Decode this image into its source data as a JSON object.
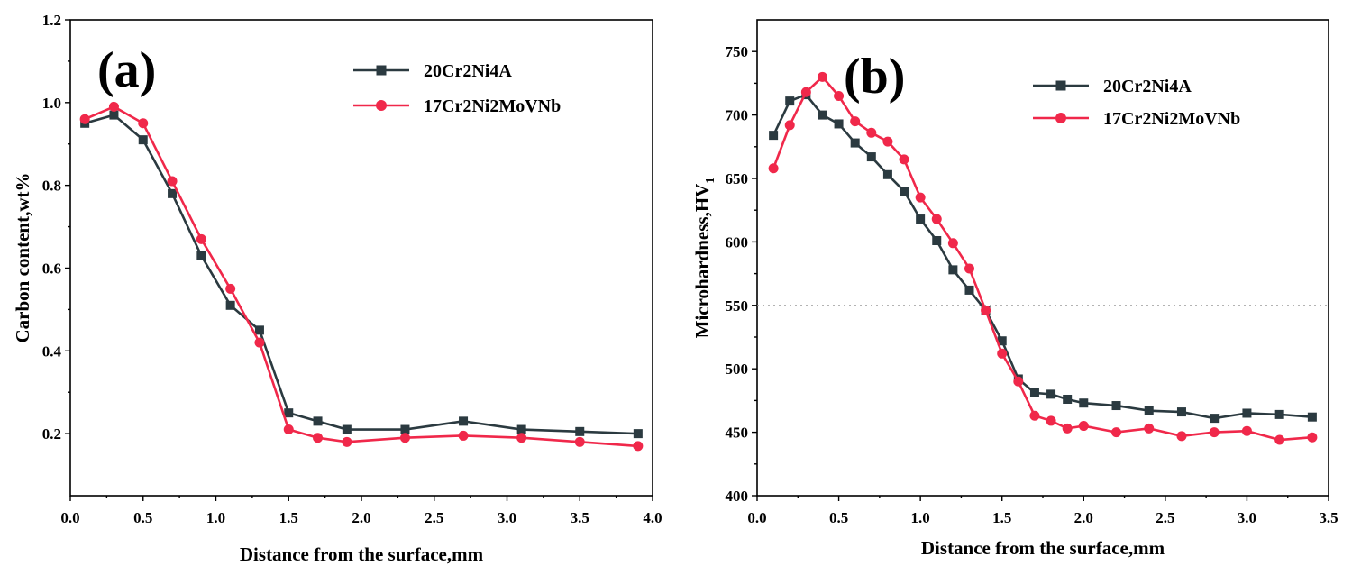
{
  "chart_data": [
    {
      "type": "line",
      "panel_label": "(a)",
      "title": "",
      "xlabel": "Distance from the surface,mm",
      "ylabel": "Carbon content,wt%",
      "xlim": [
        0,
        4.0
      ],
      "ylim": [
        0.05,
        1.2
      ],
      "xticks": [
        0.0,
        0.5,
        1.0,
        1.5,
        2.0,
        2.5,
        3.0,
        3.5,
        4.0
      ],
      "xtick_labels": [
        "0.0",
        "0.5",
        "1.0",
        "1.5",
        "2.0",
        "2.5",
        "3.0",
        "3.5",
        "4.0"
      ],
      "yticks": [
        0.2,
        0.4,
        0.6,
        0.8,
        1.0,
        1.2
      ],
      "ytick_labels": [
        "0.2",
        "0.4",
        "0.6",
        "0.8",
        "1.0",
        "1.2"
      ],
      "legend_position": "top-right",
      "series": [
        {
          "name": "20Cr2Ni4A",
          "color": "#2b3a40",
          "marker": "square",
          "x": [
            0.1,
            0.3,
            0.5,
            0.7,
            0.9,
            1.1,
            1.3,
            1.5,
            1.7,
            1.9,
            2.3,
            2.7,
            3.1,
            3.5,
            3.9
          ],
          "y": [
            0.95,
            0.97,
            0.91,
            0.78,
            0.63,
            0.51,
            0.45,
            0.25,
            0.23,
            0.21,
            0.21,
            0.23,
            0.21,
            0.205,
            0.2
          ]
        },
        {
          "name": "17Cr2Ni2MoVNb",
          "color": "#f0284a",
          "marker": "circle",
          "x": [
            0.1,
            0.3,
            0.5,
            0.7,
            0.9,
            1.1,
            1.3,
            1.5,
            1.7,
            1.9,
            2.3,
            2.7,
            3.1,
            3.5,
            3.9
          ],
          "y": [
            0.96,
            0.99,
            0.95,
            0.81,
            0.67,
            0.55,
            0.42,
            0.21,
            0.19,
            0.18,
            0.19,
            0.195,
            0.19,
            0.18,
            0.17
          ]
        }
      ]
    },
    {
      "type": "line",
      "panel_label": "(b)",
      "title": "",
      "xlabel": "Distance from the surface,mm",
      "ylabel": "Microhardness,HV",
      "ylabel_subscript": "1",
      "xlim": [
        0,
        3.5
      ],
      "ylim": [
        400,
        775
      ],
      "xticks": [
        0.0,
        0.5,
        1.0,
        1.5,
        2.0,
        2.5,
        3.0,
        3.5
      ],
      "xtick_labels": [
        "0.0",
        "0.5",
        "1.0",
        "1.5",
        "2.0",
        "2.5",
        "3.0",
        "3.5"
      ],
      "yticks": [
        400,
        450,
        500,
        550,
        600,
        650,
        700,
        750
      ],
      "ytick_labels": [
        "400",
        "450",
        "500",
        "550",
        "600",
        "650",
        "700",
        "750"
      ],
      "reference_line_y": 550,
      "legend_position": "top-right",
      "series": [
        {
          "name": "20Cr2Ni4A",
          "color": "#2b3a40",
          "marker": "square",
          "x": [
            0.1,
            0.2,
            0.3,
            0.4,
            0.5,
            0.6,
            0.7,
            0.8,
            0.9,
            1.0,
            1.1,
            1.2,
            1.3,
            1.4,
            1.5,
            1.6,
            1.7,
            1.8,
            1.9,
            2.0,
            2.2,
            2.4,
            2.6,
            2.8,
            3.0,
            3.2,
            3.4
          ],
          "y": [
            684,
            711,
            716,
            700,
            693,
            678,
            667,
            653,
            640,
            618,
            601,
            578,
            562,
            546,
            522,
            492,
            481,
            480,
            476,
            473,
            471,
            467,
            466,
            461,
            465,
            464,
            462
          ]
        },
        {
          "name": "17Cr2Ni2MoVNb",
          "color": "#f0284a",
          "marker": "circle",
          "x": [
            0.1,
            0.2,
            0.3,
            0.4,
            0.5,
            0.6,
            0.7,
            0.8,
            0.9,
            1.0,
            1.1,
            1.2,
            1.3,
            1.4,
            1.5,
            1.6,
            1.7,
            1.8,
            1.9,
            2.0,
            2.2,
            2.4,
            2.6,
            2.8,
            3.0,
            3.2,
            3.4
          ],
          "y": [
            658,
            692,
            718,
            730,
            715,
            695,
            686,
            679,
            665,
            635,
            618,
            599,
            579,
            546,
            512,
            490,
            463,
            459,
            453,
            455,
            450,
            453,
            447,
            450,
            451,
            444,
            446
          ]
        }
      ]
    }
  ]
}
